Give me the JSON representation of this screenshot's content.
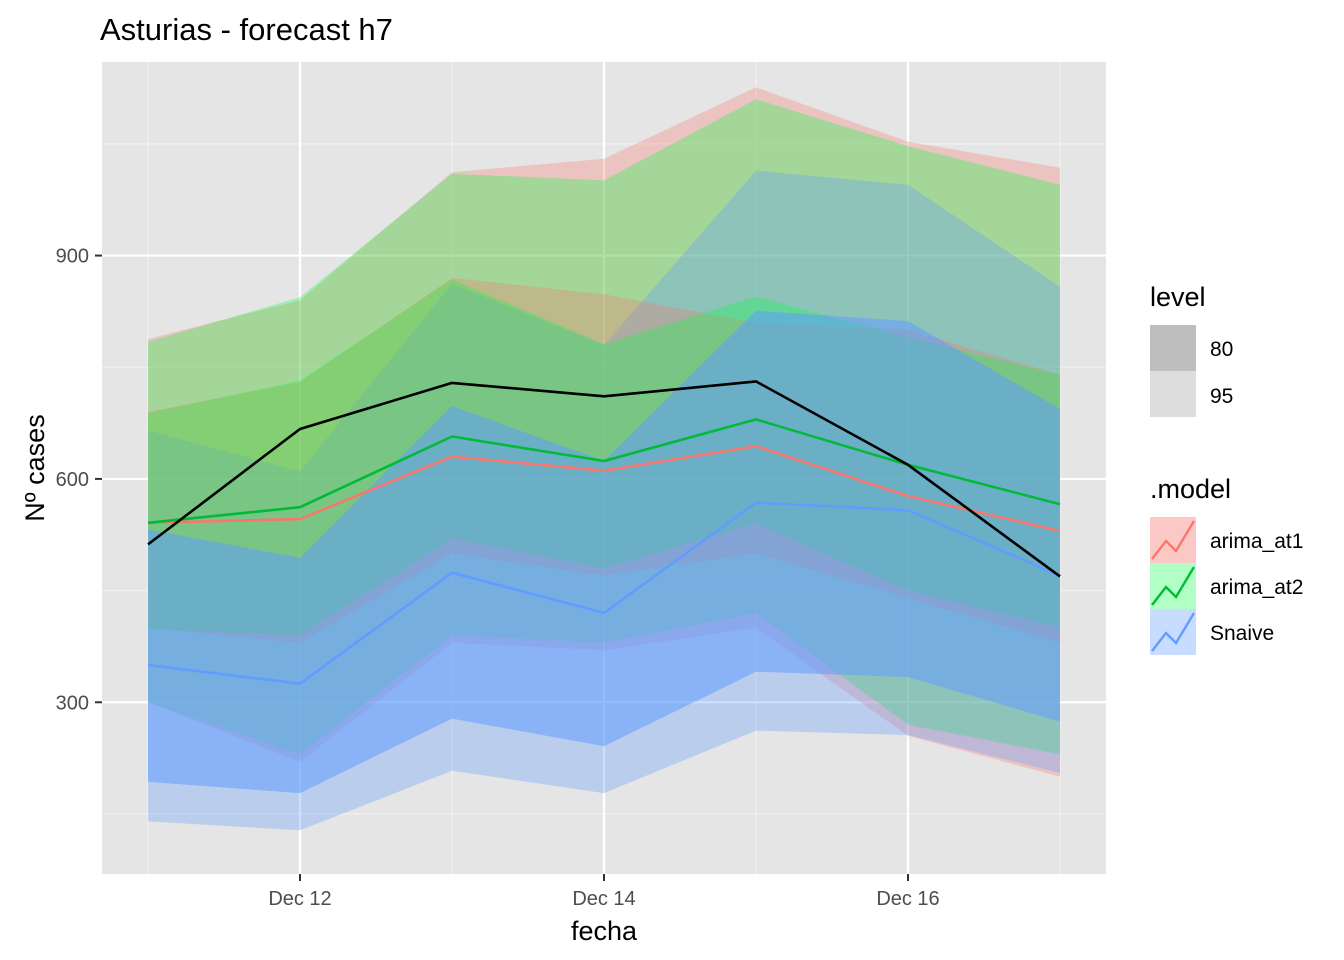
{
  "chart_data": {
    "type": "line",
    "title": "Asturias - forecast h7",
    "xlabel": "fecha",
    "ylabel": "Nº cases",
    "x": [
      "2020-12-11",
      "2020-12-12",
      "2020-12-13",
      "2020-12-14",
      "2020-12-15",
      "2020-12-16",
      "2020-12-17"
    ],
    "x_tick_labels": [
      {
        "date": "2020-12-12",
        "label": "Dec 12"
      },
      {
        "date": "2020-12-14",
        "label": "Dec 14"
      },
      {
        "date": "2020-12-16",
        "label": "Dec 16"
      }
    ],
    "y_ticks": [
      300,
      600,
      900
    ],
    "ylim": [
      70,
      1160
    ],
    "grid": true,
    "legend_position": "right",
    "actual": {
      "color": "#000000",
      "values": [
        512,
        667,
        729,
        711,
        731,
        619,
        469
      ]
    },
    "series": [
      {
        "name": "arima_at1",
        "color": "#F8766D",
        "values": [
          541,
          546,
          630,
          611,
          644,
          577,
          530
        ],
        "lower80": [
          400,
          380,
          500,
          470,
          500,
          440,
          380
        ],
        "upper80": [
          690,
          730,
          870,
          848,
          810,
          800,
          740
        ],
        "lower95": [
          300,
          220,
          380,
          370,
          400,
          255,
          200
        ],
        "upper95": [
          788,
          840,
          1012,
          1030,
          1126,
          1053,
          1018
        ]
      },
      {
        "name": "arima_at2",
        "color": "#00BA38",
        "values": [
          541,
          562,
          657,
          624,
          680,
          619,
          566
        ],
        "lower80": [
          398,
          390,
          520,
          480,
          540,
          450,
          400
        ],
        "upper80": [
          688,
          732,
          868,
          781,
          845,
          790,
          740
        ],
        "lower95": [
          300,
          230,
          390,
          380,
          420,
          270,
          230
        ],
        "upper95": [
          784,
          844,
          1010,
          1001,
          1110,
          1047,
          995
        ]
      },
      {
        "name": "Snaive",
        "color": "#619CFF",
        "values": [
          350,
          325,
          474,
          420,
          568,
          558,
          470
        ],
        "lower80": [
          193,
          178,
          278,
          241,
          341,
          334,
          274
        ],
        "upper80": [
          532,
          494,
          698,
          624,
          826,
          812,
          694
        ],
        "lower95": [
          140,
          128,
          208,
          178,
          262,
          256,
          205
        ],
        "upper95": [
          665,
          610,
          862,
          780,
          1014,
          995,
          858
        ]
      }
    ]
  },
  "legend": {
    "level_title": "level",
    "levels": [
      "80",
      "95"
    ],
    "model_title": ".model",
    "models": [
      "arima_at1",
      "arima_at2",
      "Snaive"
    ]
  },
  "colors": {
    "panel_background": "#E5E5E5",
    "grid_major": "#FFFFFF",
    "arima_at1_fill": "#F8766D",
    "arima_at2_fill": "#00FF40",
    "snaive_fill": "#619CFF"
  }
}
